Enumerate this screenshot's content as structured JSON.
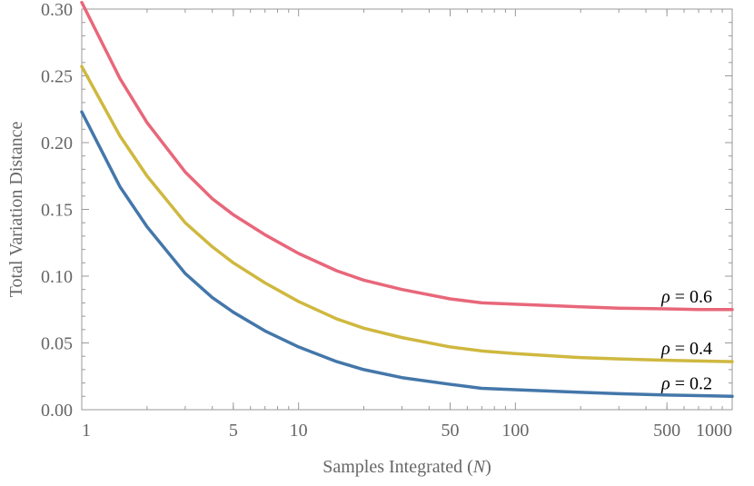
{
  "chart_data": {
    "type": "line",
    "title": "",
    "xlabel": "Samples Integrated",
    "xlabel_symbol": "N",
    "ylabel": "Total Variation Distance",
    "xscale": "log",
    "xlim": [
      1,
      1000
    ],
    "ylim": [
      0,
      0.3
    ],
    "x_ticks": [
      1,
      5,
      10,
      50,
      100,
      500,
      1000
    ],
    "x_tick_labels": [
      "1",
      "5",
      "10",
      "50",
      "100",
      "500",
      "1000"
    ],
    "y_ticks": [
      0,
      0.05,
      0.1,
      0.15,
      0.2,
      0.25,
      0.3
    ],
    "y_tick_labels": [
      "0.00",
      "0.05",
      "0.10",
      "0.15",
      "0.20",
      "0.25",
      "0.30"
    ],
    "grid": false,
    "x": [
      1,
      1.5,
      2,
      3,
      4,
      5,
      7,
      10,
      15,
      20,
      30,
      50,
      70,
      100,
      200,
      300,
      500,
      700,
      1000
    ],
    "series": [
      {
        "name": "ρ = 0.6",
        "label_symbol": "ρ",
        "label_value": "= 0.6",
        "color": "#e8677a",
        "values": [
          0.305,
          0.248,
          0.215,
          0.178,
          0.158,
          0.146,
          0.131,
          0.117,
          0.104,
          0.097,
          0.09,
          0.083,
          0.08,
          0.079,
          0.077,
          0.076,
          0.0755,
          0.075,
          0.075
        ]
      },
      {
        "name": "ρ = 0.4",
        "label_symbol": "ρ",
        "label_value": "= 0.4",
        "color": "#cfb83f",
        "values": [
          0.257,
          0.205,
          0.175,
          0.14,
          0.122,
          0.11,
          0.095,
          0.081,
          0.068,
          0.061,
          0.054,
          0.047,
          0.044,
          0.042,
          0.039,
          0.038,
          0.037,
          0.0365,
          0.036
        ]
      },
      {
        "name": "ρ = 0.2",
        "label_symbol": "ρ",
        "label_value": "= 0.2",
        "color": "#4477aa",
        "values": [
          0.223,
          0.167,
          0.137,
          0.102,
          0.084,
          0.073,
          0.059,
          0.047,
          0.036,
          0.03,
          0.024,
          0.019,
          0.016,
          0.015,
          0.013,
          0.012,
          0.011,
          0.0105,
          0.01
        ]
      }
    ]
  }
}
